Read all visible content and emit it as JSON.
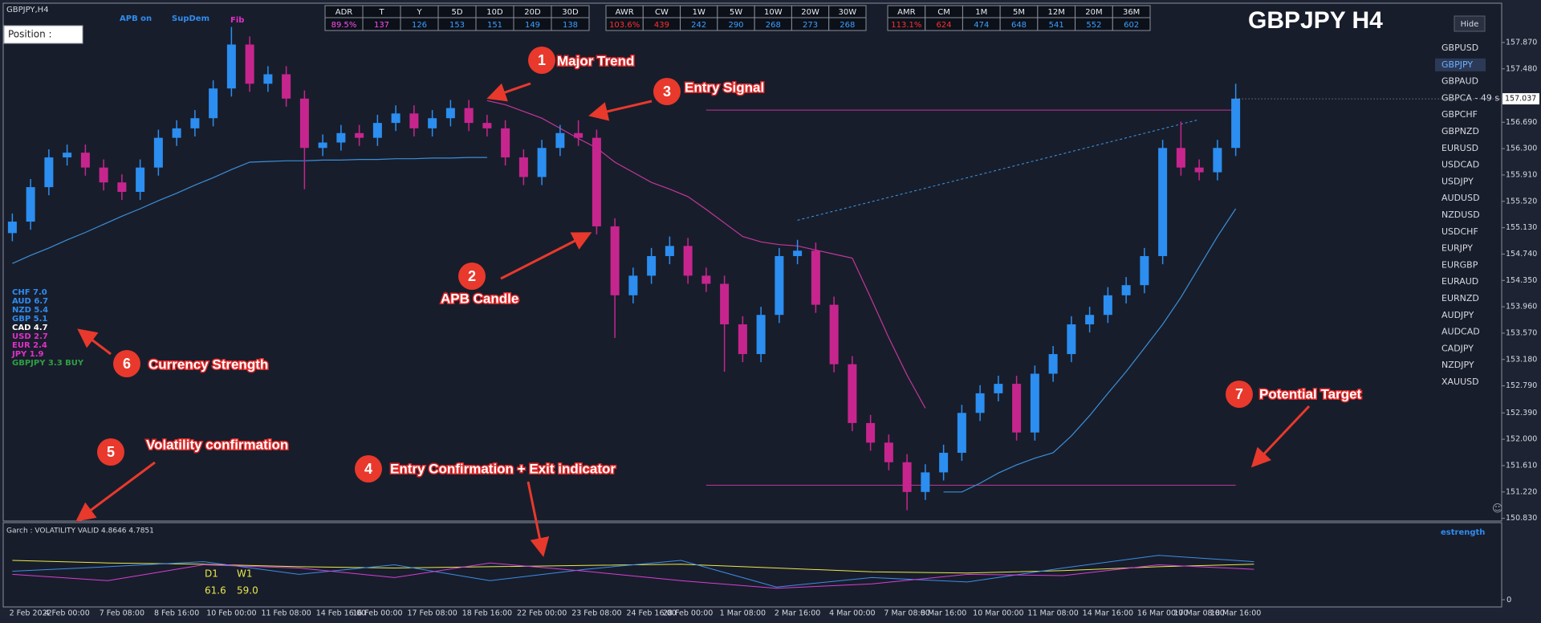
{
  "window": {
    "title": "GBPJPY,H4",
    "position_label": "Position :",
    "indicators": [
      "APB on",
      "SupDem",
      "Fib"
    ],
    "symbol_title": "GBPJPY H4",
    "hide_button": "Hide",
    "active_symbol": 1,
    "symbols": [
      "GBPUSD",
      "GBPJPY",
      "GBPAUD",
      "GBPCA - 49 s",
      "GBPCHF",
      "GBPNZD",
      "EURUSD",
      "USDCAD",
      "USDJPY",
      "AUDUSD",
      "NZDUSD",
      "USDCHF",
      "EURJPY",
      "EURGBP",
      "EURAUD",
      "EURNZD",
      "AUDJPY",
      "AUDCAD",
      "CADJPY",
      "NZDJPY",
      "XAUUSD"
    ],
    "smiley": "☺"
  },
  "tables": [
    {
      "headers": [
        "ADR",
        "T",
        "Y",
        "5D",
        "10D",
        "20D",
        "30D"
      ],
      "values": [
        "89.5%",
        "137",
        "126",
        "153",
        "151",
        "149",
        "138"
      ],
      "alert_color": "#ff4df0"
    },
    {
      "headers": [
        "AWR",
        "CW",
        "1W",
        "5W",
        "10W",
        "20W",
        "30W"
      ],
      "values": [
        "103.6%",
        "439",
        "242",
        "290",
        "268",
        "273",
        "268"
      ],
      "alert_color": "#ff3030"
    },
    {
      "headers": [
        "AMR",
        "CM",
        "1M",
        "5M",
        "12M",
        "20M",
        "36M"
      ],
      "values": [
        "113.1%",
        "624",
        "474",
        "648",
        "541",
        "552",
        "602"
      ],
      "alert_color": "#ff3030"
    }
  ],
  "currency_strength": [
    {
      "text": "CHF  7.0",
      "color": "#2f8cf0"
    },
    {
      "text": "AUD  6.7",
      "color": "#2f8cf0"
    },
    {
      "text": "NZD  5.4",
      "color": "#2f8cf0"
    },
    {
      "text": "GBP  5.1",
      "color": "#2f8cf0"
    },
    {
      "text": "CAD  4.7",
      "color": "#ffffff"
    },
    {
      "text": "USD  2.7",
      "color": "#e030c8"
    },
    {
      "text": "EUR  2.4",
      "color": "#e030c8"
    },
    {
      "text": "JPY  1.9",
      "color": "#e030c8"
    },
    {
      "text": "GBPJPY 3.3 BUY",
      "color": "#2ea043"
    }
  ],
  "annotations": [
    {
      "number": 1,
      "text": "Major Trend"
    },
    {
      "number": 2,
      "text": "APB Candle"
    },
    {
      "number": 3,
      "text": "Entry Signal"
    },
    {
      "number": 4,
      "text": "Entry Confirmation + Exit indicator"
    },
    {
      "number": 5,
      "text": "Volatility confirmation"
    },
    {
      "number": 6,
      "text": "Currency Strength"
    },
    {
      "number": 7,
      "text": "Potential Target"
    }
  ],
  "chart_data": {
    "type": "candlestick",
    "bull_color": "#2b8ef0",
    "bear_color": "#c7258e",
    "categories": [
      null,
      "2 Feb 2022",
      null,
      "4 Feb 00:00",
      null,
      null,
      "7 Feb 08:00",
      null,
      null,
      "8 Feb 16:00",
      null,
      null,
      "10 Feb 00:00",
      null,
      null,
      "11 Feb 08:00",
      null,
      null,
      "14 Feb 16:00",
      null,
      "16 Feb 00:00",
      null,
      null,
      "17 Feb 08:00",
      null,
      null,
      "18 Feb 16:00",
      null,
      null,
      "22 Feb 00:00",
      null,
      null,
      "23 Feb 08:00",
      null,
      null,
      "24 Feb 16:00",
      null,
      "28 Feb 00:00",
      null,
      null,
      "1 Mar 08:00",
      null,
      null,
      "2 Mar 16:00",
      null,
      null,
      "4 Mar 00:00",
      null,
      null,
      "7 Mar 08:00",
      null,
      "8 Mar 16:00",
      null,
      null,
      "10 Mar 00:00",
      null,
      null,
      "11 Mar 08:00",
      null,
      null,
      "14 Mar 16:00",
      null,
      null,
      "16 Mar 00:00",
      null,
      "17 Mar 08:00",
      null,
      "18 Mar 16:00"
    ],
    "open": [
      155.05,
      155.22,
      155.73,
      156.17,
      156.24,
      156.02,
      155.8,
      155.66,
      156.02,
      156.46,
      156.6,
      156.75,
      157.19,
      157.84,
      157.26,
      157.4,
      157.04,
      156.31,
      156.39,
      156.53,
      156.46,
      156.68,
      156.82,
      156.6,
      156.75,
      156.9,
      156.68,
      156.6,
      156.17,
      155.88,
      156.31,
      156.53,
      156.46,
      155.15,
      154.13,
      154.42,
      154.71,
      154.86,
      154.42,
      154.3,
      153.7,
      153.26,
      153.84,
      154.71,
      154.79,
      153.99,
      153.11,
      152.24,
      151.95,
      151.66,
      151.22,
      151.51,
      151.8,
      152.39,
      152.68,
      152.82,
      152.1,
      152.97,
      153.26,
      153.7,
      153.84,
      154.13,
      154.28,
      154.71,
      156.31,
      156.02,
      155.95,
      156.31
    ],
    "high": [
      155.34,
      155.85,
      156.29,
      156.36,
      156.36,
      156.14,
      155.92,
      156.14,
      156.58,
      156.72,
      156.87,
      157.31,
      158.1,
      157.96,
      157.52,
      157.52,
      157.16,
      156.51,
      156.65,
      156.65,
      156.8,
      156.94,
      156.94,
      156.87,
      157.02,
      157.02,
      156.8,
      156.72,
      156.29,
      156.43,
      156.65,
      156.72,
      156.58,
      155.27,
      154.54,
      154.83,
      155.0,
      154.98,
      154.54,
      154.42,
      153.82,
      153.96,
      154.83,
      154.95,
      154.91,
      154.11,
      153.23,
      152.36,
      152.07,
      151.78,
      151.63,
      151.92,
      152.51,
      152.8,
      152.94,
      152.94,
      153.09,
      153.38,
      153.82,
      153.96,
      154.25,
      154.4,
      154.83,
      156.43,
      156.7,
      156.14,
      156.43,
      157.26
    ],
    "low": [
      154.93,
      155.1,
      155.61,
      156.05,
      155.9,
      155.68,
      155.54,
      155.54,
      155.9,
      156.34,
      156.48,
      156.63,
      157.07,
      157.14,
      157.14,
      156.92,
      155.7,
      156.19,
      156.27,
      156.34,
      156.34,
      156.56,
      156.48,
      156.48,
      156.63,
      156.56,
      156.48,
      156.05,
      155.76,
      155.76,
      156.19,
      156.34,
      155.03,
      153.5,
      154.01,
      154.3,
      154.59,
      154.3,
      154.18,
      153.0,
      153.14,
      153.14,
      153.72,
      154.59,
      153.87,
      152.99,
      152.12,
      151.83,
      151.54,
      150.95,
      151.1,
      151.39,
      151.68,
      152.27,
      152.56,
      151.98,
      151.98,
      152.85,
      153.14,
      153.58,
      153.72,
      154.01,
      154.16,
      154.59,
      155.9,
      155.83,
      155.83,
      156.19
    ],
    "close": [
      155.22,
      155.73,
      156.17,
      156.24,
      156.02,
      155.8,
      155.66,
      156.02,
      156.46,
      156.6,
      156.75,
      157.19,
      157.84,
      157.26,
      157.4,
      157.04,
      156.31,
      156.39,
      156.53,
      156.46,
      156.68,
      156.82,
      156.6,
      156.75,
      156.9,
      156.68,
      156.6,
      156.17,
      155.88,
      156.31,
      156.53,
      156.46,
      155.15,
      154.13,
      154.42,
      154.71,
      154.86,
      154.42,
      154.3,
      153.7,
      153.26,
      153.84,
      154.71,
      154.79,
      153.99,
      153.11,
      152.24,
      151.95,
      151.66,
      151.22,
      151.51,
      151.8,
      152.39,
      152.68,
      152.82,
      152.1,
      152.97,
      153.26,
      153.7,
      153.84,
      154.13,
      154.28,
      154.71,
      156.31,
      156.02,
      155.95,
      156.31,
      157.04
    ],
    "overlays": [
      {
        "color": "#3a8fd8",
        "values": [
          154.6,
          154.72,
          154.83,
          154.95,
          155.06,
          155.18,
          155.3,
          155.41,
          155.53,
          155.64,
          155.76,
          155.87,
          155.99,
          156.1,
          156.11,
          156.12,
          156.12,
          156.13,
          156.13,
          156.14,
          156.14,
          156.15,
          156.15,
          156.16,
          156.16,
          156.17,
          156.17,
          null,
          null,
          null,
          null,
          null,
          null,
          null,
          null,
          null,
          null,
          null,
          null,
          null,
          null,
          null,
          null,
          null,
          null,
          null,
          null,
          null,
          null,
          null,
          null,
          151.22,
          151.22,
          151.35,
          151.5,
          151.62,
          151.72,
          151.8,
          152.05,
          152.35,
          152.68,
          153.0,
          153.35,
          153.7,
          154.1,
          154.55,
          155.0,
          155.41
        ]
      },
      {
        "color": "#c2379b",
        "values": [
          null,
          null,
          null,
          null,
          null,
          null,
          null,
          null,
          null,
          null,
          null,
          null,
          null,
          null,
          null,
          null,
          null,
          null,
          null,
          null,
          null,
          null,
          null,
          null,
          null,
          null,
          157.01,
          156.95,
          156.85,
          156.75,
          156.6,
          156.45,
          156.31,
          156.1,
          155.95,
          155.8,
          155.7,
          155.59,
          155.4,
          155.2,
          155.0,
          154.92,
          154.88,
          154.86,
          154.8,
          154.74,
          154.68,
          154.1,
          153.5,
          152.95,
          152.46,
          null,
          null,
          null,
          null,
          null,
          null,
          null,
          null,
          null,
          null,
          null,
          null,
          null,
          null,
          null,
          null,
          null
        ]
      }
    ],
    "levels": [
      156.87,
      151.32
    ],
    "level_color": "#c2379b",
    "target_line": [
      155.24,
      156.73
    ],
    "target_color": "#3a9be8",
    "last_price": 157.037,
    "ylim": [
      150.79,
      158.38
    ],
    "yticks": [
      {
        "value": 157.87,
        "label": "157.870"
      },
      {
        "value": 157.48,
        "label": "157.480"
      },
      {
        "value": 156.69,
        "label": "156.690"
      },
      {
        "value": 156.3,
        "label": "156.300"
      },
      {
        "value": 155.91,
        "label": "155.910"
      },
      {
        "value": 155.52,
        "label": "155.520"
      },
      {
        "value": 155.13,
        "label": "155.130"
      },
      {
        "value": 154.74,
        "label": "154.740"
      },
      {
        "value": 154.35,
        "label": "154.350"
      },
      {
        "value": 153.96,
        "label": "153.960"
      },
      {
        "value": 153.57,
        "label": "153.570"
      },
      {
        "value": 153.18,
        "label": "153.180"
      },
      {
        "value": 152.79,
        "label": "152.790"
      },
      {
        "value": 152.39,
        "label": "152.390"
      },
      {
        "value": 152,
        "label": "152.000"
      },
      {
        "value": 151.61,
        "label": "151.610"
      },
      {
        "value": 151.22,
        "label": "151.220"
      },
      {
        "value": 150.83,
        "label": "150.830"
      }
    ]
  },
  "oscillator": {
    "label": "Garch : VOLATILITY VALID 4.8646 4.7851",
    "ylim": [
      0,
      100
    ],
    "yticks": [
      0
    ],
    "series": [
      {
        "color": "#e8e84a",
        "values": [
          62,
          58,
          56,
          52,
          50,
          52,
          54,
          56,
          50,
          44,
          42,
          46,
          52,
          56
        ]
      },
      {
        "color": "#3b8ee8",
        "values": [
          45,
          52,
          60,
          40,
          55,
          30,
          48,
          62,
          20,
          35,
          28,
          50,
          70,
          60
        ]
      },
      {
        "color": "#d63fd6",
        "values": [
          40,
          30,
          55,
          50,
          35,
          58,
          45,
          30,
          18,
          25,
          40,
          38,
          55,
          48
        ]
      }
    ],
    "timeframes": [
      "D1",
      "W1"
    ],
    "timeframe_values": [
      "61.6",
      "59.0"
    ],
    "strength_label": "estrength"
  }
}
